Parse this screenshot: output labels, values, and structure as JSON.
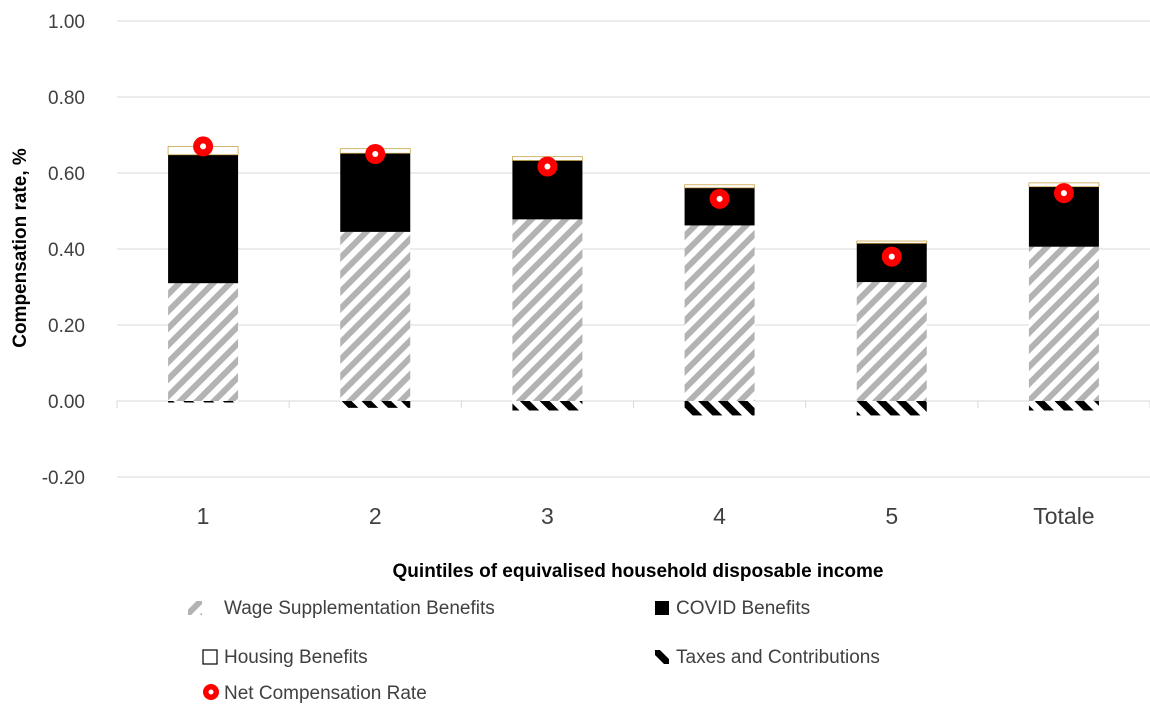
{
  "chart_data": {
    "type": "bar",
    "stacked": true,
    "title": "",
    "xlabel": "Quintiles of equivalised household disposable income",
    "ylabel": "Compensation rate, %",
    "ylim": [
      -0.2,
      1.0
    ],
    "yticks": [
      "1.00",
      "0.80",
      "0.60",
      "0.40",
      "0.20",
      "0.00",
      "-0.20"
    ],
    "ytick_values": [
      1.0,
      0.8,
      0.6,
      0.4,
      0.2,
      0.0,
      -0.2
    ],
    "categories": [
      "1",
      "2",
      "3",
      "4",
      "5",
      "Totale"
    ],
    "grid": true,
    "legend_position": "bottom",
    "series": [
      {
        "name": "Wage Supplementation Benefits",
        "kind": "bar",
        "pattern": "diagonal-gray",
        "values": [
          0.31,
          0.445,
          0.478,
          0.462,
          0.313,
          0.406
        ]
      },
      {
        "name": "COVID Benefits",
        "kind": "bar",
        "pattern": "solid-black",
        "values": [
          0.338,
          0.207,
          0.155,
          0.099,
          0.102,
          0.158
        ]
      },
      {
        "name": "Housing Benefits",
        "kind": "bar",
        "pattern": "white-outline",
        "values": [
          0.022,
          0.012,
          0.01,
          0.008,
          0.006,
          0.01
        ]
      },
      {
        "name": "Taxes and Contributions",
        "kind": "bar",
        "pattern": "diagonal-black",
        "values": [
          -0.003,
          -0.018,
          -0.025,
          -0.038,
          -0.038,
          -0.025
        ]
      },
      {
        "name": "Net Compensation Rate",
        "kind": "marker",
        "values": [
          0.67,
          0.65,
          0.617,
          0.532,
          0.38,
          0.547
        ]
      }
    ],
    "colors": {
      "grid": "#d9d9d9",
      "axis_text": "#404040",
      "hatch_gray": "#b3b3b3",
      "covid": "#000000",
      "housing_edge": "#c9a24a",
      "marker": "#ff0000"
    }
  }
}
